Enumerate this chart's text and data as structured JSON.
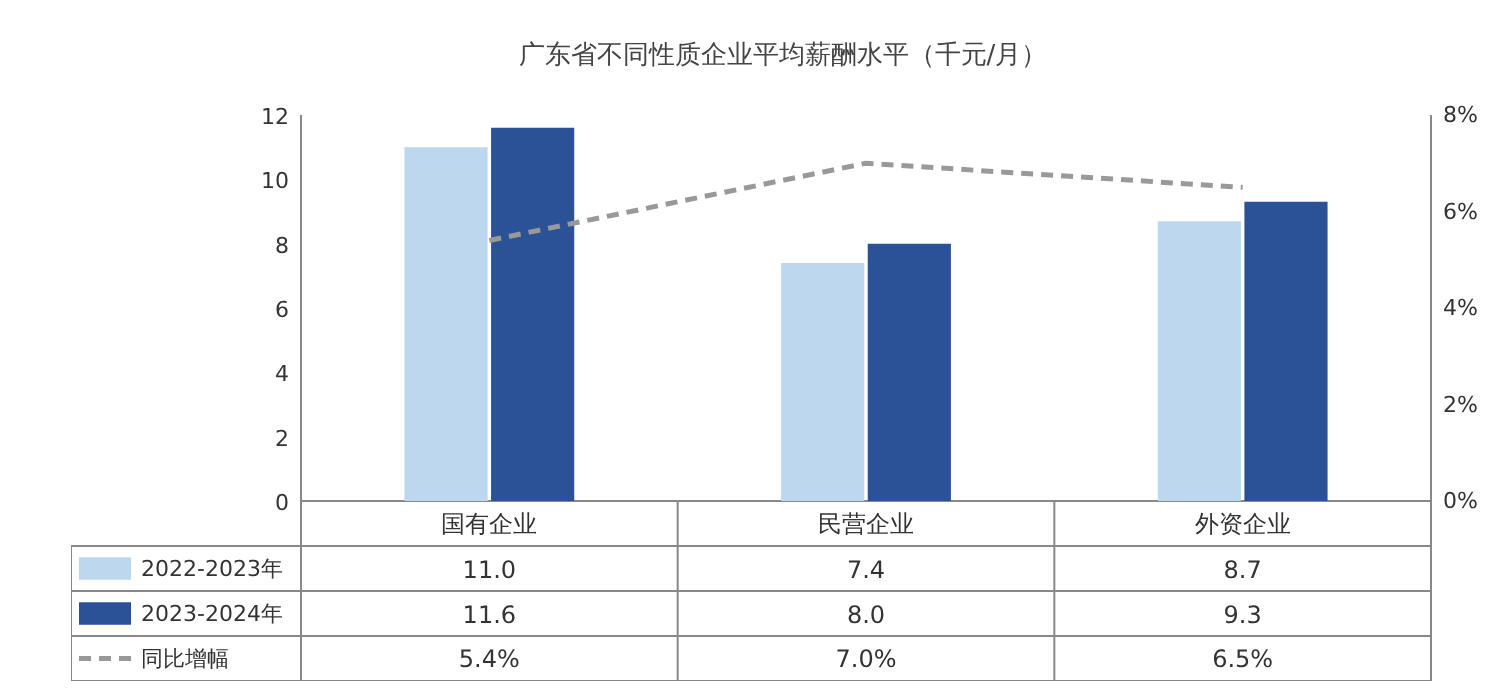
{
  "chart_data": {
    "type": "bar",
    "title": "广东省不同性质企业平均薪酬水平（千元/月）",
    "categories": [
      "国有企业",
      "民营企业",
      "外资企业"
    ],
    "series": [
      {
        "name": "2022-2023年",
        "color": "#bdd7ee",
        "values": [
          11.0,
          7.4,
          8.7
        ],
        "value_labels": [
          "11.0",
          "7.4",
          "8.7"
        ]
      },
      {
        "name": "2023-2024年",
        "color": "#2b5196",
        "values": [
          11.6,
          8.0,
          9.3
        ],
        "value_labels": [
          "11.6",
          "8.0",
          "9.3"
        ]
      },
      {
        "name": "同比增幅",
        "type": "line",
        "axis": "y2",
        "color": "#999999",
        "line_style": "dashed",
        "marker": "none",
        "values": [
          5.4,
          7.0,
          6.5
        ],
        "value_labels": [
          "5.4%",
          "7.0%",
          "6.5%"
        ]
      }
    ],
    "ylim": [
      0,
      12
    ],
    "yticks": [
      0,
      2,
      4,
      6,
      8,
      10,
      12
    ],
    "y2lim": [
      0,
      8
    ],
    "y2ticks": [
      {
        "value": 0,
        "label": "0%"
      },
      {
        "value": 2,
        "label": "2%"
      },
      {
        "value": 4,
        "label": "4%"
      },
      {
        "value": 6,
        "label": "6%"
      },
      {
        "value": 8,
        "label": "8%"
      }
    ],
    "grid": false,
    "legend": "bottom"
  }
}
